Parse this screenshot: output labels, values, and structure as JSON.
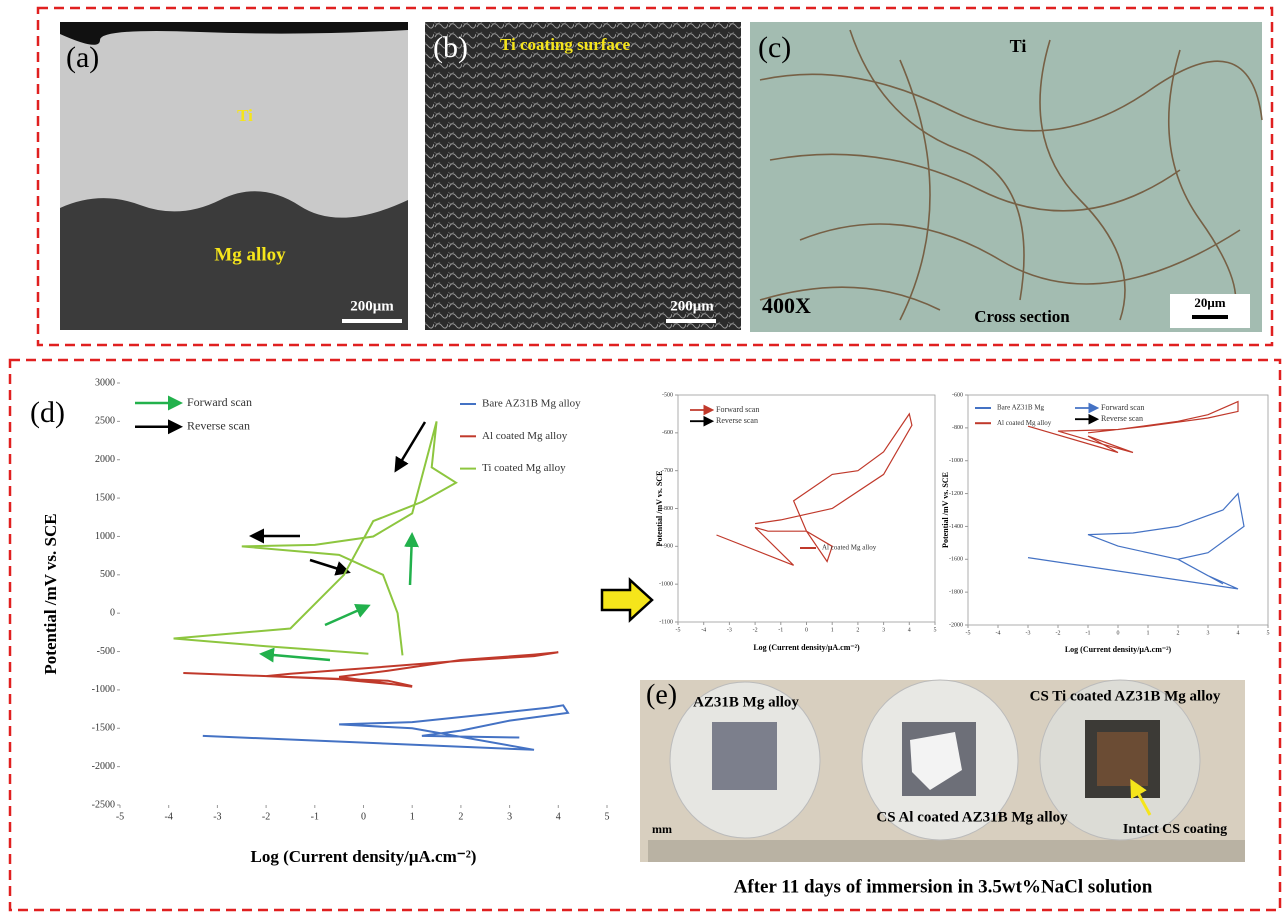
{
  "panels": {
    "a": {
      "label": "(a)",
      "top": "Ti",
      "bottom": "Mg alloy",
      "scale": "200μm"
    },
    "b": {
      "label": "(b)",
      "title": "Ti coating surface",
      "scale": "200μm"
    },
    "c": {
      "label": "(c)",
      "top": "Ti",
      "magnification": "400X",
      "caption": "Cross section",
      "scale": "20μm"
    },
    "e": {
      "label": "(e)",
      "left": "AZ31B Mg alloy",
      "right": "CS Ti coated AZ31B Mg alloy",
      "middle": "CS Al coated AZ31B Mg alloy",
      "note": "Intact CS coating",
      "unit": "mm",
      "caption": "After 11 days of immersion in 3.5wt%NaCl solution"
    }
  },
  "chart_data": [
    {
      "type": "line",
      "label": "(d)",
      "x_label": "Log (Current density/μA.cm⁻²)",
      "y_label": "Potential /mV vs. SCE",
      "xlim": [
        -5,
        5
      ],
      "xticks": [
        -5,
        -4,
        -3,
        -2,
        -1,
        0,
        1,
        2,
        3,
        4,
        5
      ],
      "ylim": [
        -2500,
        3000
      ],
      "yticks": [
        -2500,
        -2000,
        -1500,
        -1000,
        -500,
        0,
        500,
        1000,
        1500,
        2000,
        2500,
        3000
      ],
      "frame": false,
      "legend": "upper right",
      "arrow_legend": [
        {
          "label": "Forward scan",
          "color": "#22b14c"
        },
        {
          "label": "Reverse scan",
          "color": "#000000"
        }
      ],
      "series": [
        {
          "name": "Bare AZ31B Mg alloy",
          "color": "#4472c4",
          "x": [
            -3.3,
            3.5,
            1,
            -0.5,
            1,
            2.5,
            3.8,
            4.1,
            4.2,
            3,
            2,
            1.2,
            3.2
          ],
          "values": [
            -1600,
            -1780,
            -1500,
            -1450,
            -1420,
            -1320,
            -1230,
            -1200,
            -1300,
            -1400,
            -1530,
            -1600,
            -1620
          ]
        },
        {
          "name": "Al coated Mg alloy",
          "color": "#c0392b",
          "x": [
            -3.7,
            0.5,
            1,
            -0.5,
            -2,
            -1.5,
            0,
            2,
            3.5,
            4,
            3.5,
            2,
            0.5,
            -0.5,
            1
          ],
          "values": [
            -780,
            -880,
            -950,
            -860,
            -820,
            -790,
            -720,
            -620,
            -560,
            -510,
            -540,
            -610,
            -750,
            -830,
            -960
          ]
        },
        {
          "name": "Ti coated Mg alloy",
          "color": "#8dc63f",
          "x": [
            0.8,
            0.7,
            0.4,
            -0.5,
            -2.5,
            -1,
            0.2,
            1,
            1.5,
            1.4,
            1.9,
            1.2,
            0.2,
            -0.4,
            -1.5,
            -3.9,
            -2,
            -0.5,
            0.1
          ],
          "values": [
            -550,
            0,
            500,
            760,
            870,
            890,
            1000,
            1300,
            2500,
            1900,
            1700,
            1450,
            1200,
            500,
            -200,
            -330,
            -430,
            -500,
            -530
          ]
        }
      ]
    },
    {
      "type": "line",
      "x_label": "Log (Current density/μA.cm⁻²)",
      "y_label": "Potential /mV vs. SCE",
      "xlim": [
        -5,
        5
      ],
      "xticks": [
        -5,
        -4,
        -3,
        -2,
        -1,
        0,
        1,
        2,
        3,
        4,
        5
      ],
      "ylim": [
        -1100,
        -500
      ],
      "yticks": [
        -1100,
        -1000,
        -900,
        -800,
        -700,
        -600,
        -500
      ],
      "frame": true,
      "legend": "lower right",
      "arrow_legend": [
        {
          "label": "Forward scan",
          "color": "#c0392b"
        },
        {
          "label": "Reverse scan",
          "color": "#000000"
        }
      ],
      "series": [
        {
          "name": "Al coated Mg alloy",
          "color": "#c0392b",
          "x": [
            -3.5,
            -0.5,
            -2,
            -1.5,
            0,
            1,
            0.8,
            0,
            -0.5,
            1,
            2,
            3,
            4,
            4.1,
            3,
            1,
            -1,
            -2
          ],
          "values": [
            -870,
            -950,
            -850,
            -860,
            -860,
            -900,
            -940,
            -860,
            -780,
            -710,
            -700,
            -650,
            -550,
            -580,
            -710,
            -800,
            -830,
            -840
          ]
        }
      ]
    },
    {
      "type": "line",
      "x_label": "Log (Current density/μA.cm⁻²)",
      "y_label": "Potential /mV vs. SCE",
      "xlim": [
        -5,
        5
      ],
      "xticks": [
        -5,
        -4,
        -3,
        -2,
        -1,
        0,
        1,
        2,
        3,
        4,
        5
      ],
      "ylim": [
        -2000,
        -600
      ],
      "yticks": [
        -2000,
        -1800,
        -1600,
        -1400,
        -1200,
        -1000,
        -800,
        -600
      ],
      "frame": true,
      "legend": "upper left",
      "arrow_legend": [
        {
          "label": "Forward scan",
          "color": "#4472c4"
        },
        {
          "label": "Reverse scan",
          "color": "#000000"
        }
      ],
      "series": [
        {
          "name": "Bare AZ31B Mg",
          "color": "#4472c4",
          "x": [
            -3,
            4,
            3,
            2,
            0,
            -1,
            0.5,
            2,
            3.5,
            4,
            4.2,
            3,
            2,
            3.5
          ],
          "values": [
            -1590,
            -1780,
            -1700,
            -1600,
            -1520,
            -1450,
            -1440,
            -1400,
            -1300,
            -1200,
            -1400,
            -1560,
            -1600,
            -1750
          ]
        },
        {
          "name": "Al coated Mg alloy",
          "color": "#c0392b",
          "x": [
            -3,
            0,
            -1,
            0.5,
            -0.5,
            -2,
            0,
            2,
            3,
            4,
            4,
            3,
            1,
            -1
          ],
          "values": [
            -790,
            -950,
            -850,
            -950,
            -900,
            -820,
            -810,
            -760,
            -720,
            -640,
            -700,
            -740,
            -790,
            -830
          ]
        }
      ]
    }
  ]
}
